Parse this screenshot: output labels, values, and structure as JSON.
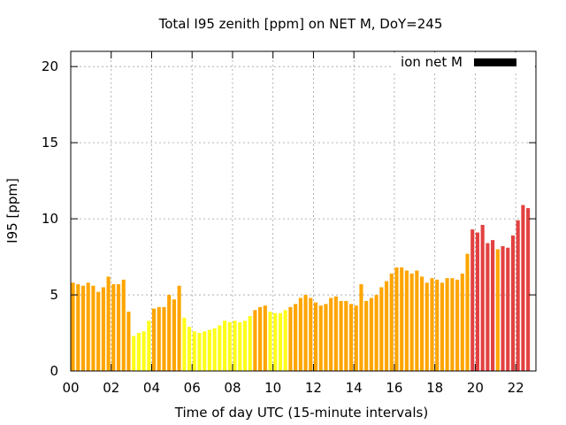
{
  "chart_data": {
    "type": "bar",
    "title": "Total I95 zenith [ppm] on NET M, DoY=245",
    "xlabel": "Time of day UTC (15-minute intervals)",
    "ylabel": "I95 [ppm]",
    "xlim": [
      0,
      23
    ],
    "ylim": [
      0,
      21
    ],
    "x_ticks": [
      "00",
      "02",
      "04",
      "06",
      "08",
      "10",
      "12",
      "14",
      "16",
      "18",
      "20",
      "22"
    ],
    "y_ticks": [
      "0",
      "5",
      "10",
      "15",
      "20"
    ],
    "grid": true,
    "legend": {
      "label": "ion net M",
      "placement": "top-right",
      "color": "#000000"
    },
    "bar_colors": {
      "yellow": "#ffff1a",
      "orange": "#ffa500",
      "red": "#e34141"
    },
    "intervals_per_hour": 4,
    "values": [
      5.8,
      5.7,
      5.6,
      5.8,
      5.6,
      5.2,
      5.5,
      6.2,
      5.7,
      5.7,
      6.0,
      3.9,
      2.3,
      2.5,
      2.6,
      3.3,
      4.1,
      4.2,
      4.2,
      5.0,
      4.7,
      5.6,
      3.5,
      2.9,
      2.6,
      2.5,
      2.6,
      2.7,
      2.8,
      3.0,
      3.3,
      3.2,
      3.3,
      3.2,
      3.3,
      3.6,
      4.0,
      4.2,
      4.3,
      3.9,
      3.8,
      3.8,
      4.0,
      4.2,
      4.4,
      4.8,
      5.0,
      4.8,
      4.5,
      4.3,
      4.4,
      4.8,
      4.9,
      4.6,
      4.6,
      4.4,
      4.3,
      5.7,
      4.6,
      4.8,
      5.0,
      5.5,
      5.9,
      6.4,
      6.8,
      6.8,
      6.6,
      6.4,
      6.6,
      6.2,
      5.8,
      6.1,
      6.0,
      5.8,
      6.1,
      6.1,
      6.0,
      6.4,
      7.7,
      9.3,
      9.1,
      9.6,
      8.4,
      8.6,
      8.0,
      8.2,
      8.1,
      8.9,
      9.9,
      10.9,
      10.7
    ],
    "colors": [
      "orange",
      "orange",
      "orange",
      "orange",
      "orange",
      "orange",
      "orange",
      "orange",
      "orange",
      "orange",
      "orange",
      "orange",
      "yellow",
      "yellow",
      "yellow",
      "yellow",
      "orange",
      "orange",
      "orange",
      "orange",
      "orange",
      "orange",
      "yellow",
      "yellow",
      "yellow",
      "yellow",
      "yellow",
      "yellow",
      "yellow",
      "yellow",
      "yellow",
      "yellow",
      "yellow",
      "yellow",
      "yellow",
      "yellow",
      "orange",
      "orange",
      "orange",
      "yellow",
      "yellow",
      "yellow",
      "yellow",
      "orange",
      "orange",
      "orange",
      "orange",
      "orange",
      "orange",
      "orange",
      "orange",
      "orange",
      "orange",
      "orange",
      "orange",
      "orange",
      "orange",
      "orange",
      "orange",
      "orange",
      "orange",
      "orange",
      "orange",
      "orange",
      "orange",
      "orange",
      "orange",
      "orange",
      "orange",
      "orange",
      "orange",
      "orange",
      "orange",
      "orange",
      "orange",
      "orange",
      "orange",
      "orange",
      "orange",
      "red",
      "red",
      "red",
      "red",
      "red",
      "orange",
      "red",
      "red",
      "red",
      "red",
      "red",
      "red"
    ]
  }
}
